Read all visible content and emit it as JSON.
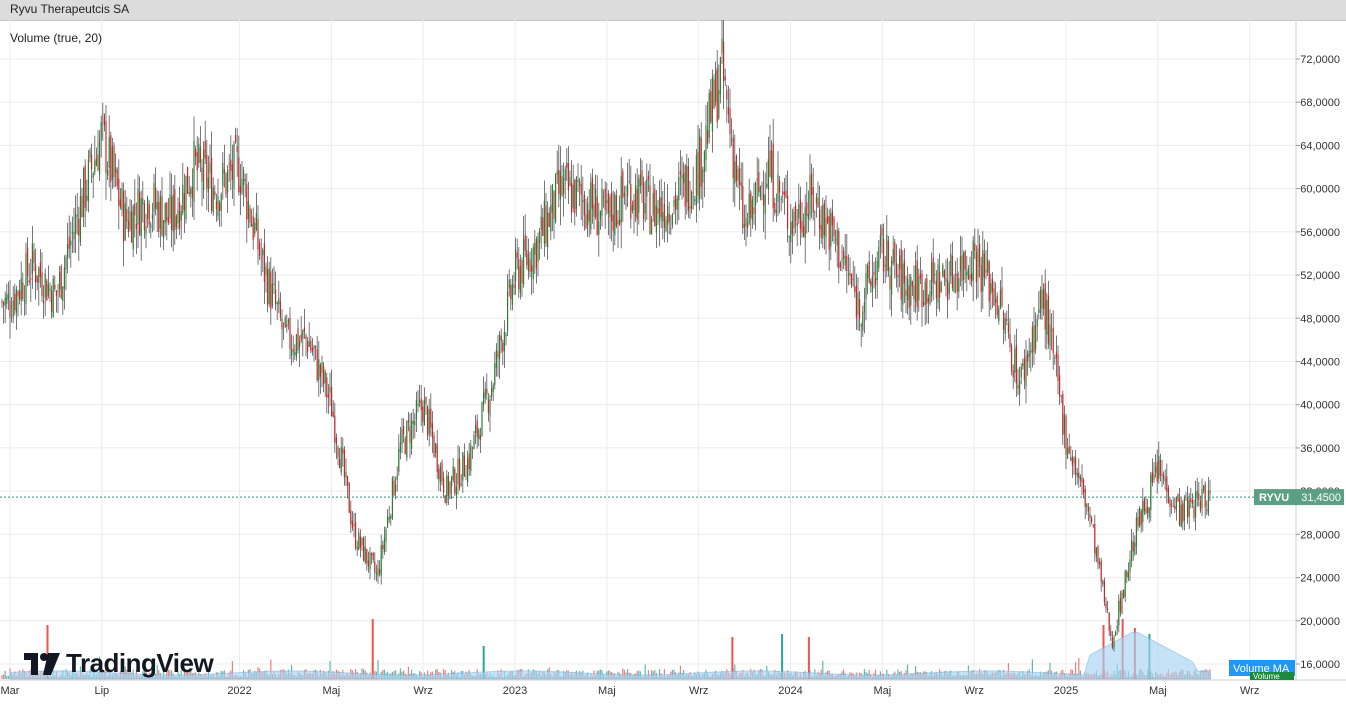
{
  "header": {
    "title": "Ryvu Therapeutcis SA"
  },
  "indicator": {
    "label": "Volume (true, 20)"
  },
  "brand": {
    "name": "TradingView"
  },
  "price_tag": {
    "symbol": "RYVU",
    "value": "31,4500"
  },
  "volume_tag": {
    "label": "Volume MA",
    "value": "Volume"
  },
  "colors": {
    "up": "#26a69a",
    "down": "#ef5350",
    "candle_body_up": "#2e7d32",
    "candle_body_down": "#c62828",
    "grid": "#ececec",
    "price_line": "#2e8b7a",
    "price_tag_bg": "#5b9f85",
    "volume_ma_fill": "#a9d4f2",
    "volume_ma_tag": "#2196f3"
  },
  "chart_data": {
    "type": "candlestick",
    "y_axis": {
      "ticks": [
        "72,0000",
        "68,0000",
        "64,0000",
        "60,0000",
        "56,0000",
        "52,0000",
        "48,0000",
        "44,0000",
        "40,0000",
        "36,0000",
        "32,0000",
        "28,0000",
        "24,0000",
        "20,0000",
        "16,0000"
      ],
      "tick_values": [
        72,
        68,
        64,
        60,
        56,
        52,
        48,
        44,
        40,
        36,
        32,
        28,
        24,
        20,
        16
      ],
      "range": [
        15.2,
        73.5
      ]
    },
    "x_axis": {
      "labels": [
        "Mar",
        "Lip",
        "2022",
        "Maj",
        "Wrz",
        "2023",
        "Maj",
        "Wrz",
        "2024",
        "Maj",
        "Wrz",
        "2025",
        "Maj",
        "Wrz"
      ],
      "dates": [
        "2021-03",
        "2021-07",
        "2022-01",
        "2022-05",
        "2022-09",
        "2023-01",
        "2023-05",
        "2023-09",
        "2024-01",
        "2024-05",
        "2024-09",
        "2025-01",
        "2025-05",
        "2025-09"
      ]
    },
    "last_price": 31.45,
    "price_path": [
      [
        "2021-03",
        49.5
      ],
      [
        "2021-04",
        53
      ],
      [
        "2021-05",
        50
      ],
      [
        "2021-06",
        58
      ],
      [
        "2021-07",
        65
      ],
      [
        "2021-08",
        57
      ],
      [
        "2021-09",
        59
      ],
      [
        "2021-10",
        57
      ],
      [
        "2021-11",
        62
      ],
      [
        "2021-12",
        60
      ],
      [
        "2022-01",
        62
      ],
      [
        "2022-02",
        53
      ],
      [
        "2022-03",
        46
      ],
      [
        "2022-04",
        46
      ],
      [
        "2022-05",
        40
      ],
      [
        "2022-06",
        28
      ],
      [
        "2022-07",
        24
      ],
      [
        "2022-08",
        36
      ],
      [
        "2022-09",
        40
      ],
      [
        "2022-10",
        32
      ],
      [
        "2022-11",
        35
      ],
      [
        "2022-12",
        42
      ],
      [
        "2023-01",
        52
      ],
      [
        "2023-02",
        55
      ],
      [
        "2023-03",
        60
      ],
      [
        "2023-04",
        59
      ],
      [
        "2023-05",
        57
      ],
      [
        "2023-06",
        60
      ],
      [
        "2023-07",
        58
      ],
      [
        "2023-08",
        59
      ],
      [
        "2023-09",
        62
      ],
      [
        "2023-10",
        71
      ],
      [
        "2023-11",
        56
      ],
      [
        "2023-12",
        62
      ],
      [
        "2024-01",
        57
      ],
      [
        "2024-02",
        59
      ],
      [
        "2024-03",
        55
      ],
      [
        "2024-04",
        49
      ],
      [
        "2024-05",
        54
      ],
      [
        "2024-06",
        51
      ],
      [
        "2024-07",
        51
      ],
      [
        "2024-08",
        52
      ],
      [
        "2024-09",
        54
      ],
      [
        "2024-10",
        50
      ],
      [
        "2024-11",
        42
      ],
      [
        "2024-12",
        50
      ],
      [
        "2025-01",
        37
      ],
      [
        "2025-02",
        30
      ],
      [
        "2025-03",
        18
      ],
      [
        "2025-04",
        28
      ],
      [
        "2025-05",
        34
      ],
      [
        "2025-06",
        30
      ],
      [
        "2025-07",
        31.45
      ]
    ],
    "volume_spikes": [
      [
        "2021-04-20",
        0.9
      ],
      [
        "2022-06-25",
        1.0
      ],
      [
        "2022-11-20",
        0.55
      ],
      [
        "2023-10-15",
        0.7
      ],
      [
        "2023-12-20",
        0.75
      ],
      [
        "2024-01-25",
        0.7
      ],
      [
        "2025-02-20",
        0.9
      ],
      [
        "2025-03-15",
        1.0
      ],
      [
        "2025-04-01",
        0.85
      ],
      [
        "2025-04-20",
        0.75
      ]
    ]
  }
}
